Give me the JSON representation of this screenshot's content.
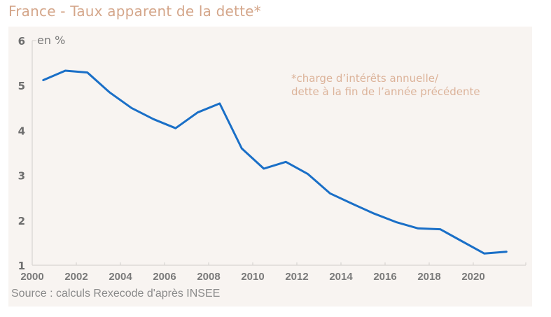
{
  "header": {
    "title": "France - Taux apparent de la dette*"
  },
  "footer": {
    "source": "Source : calculs Rexecode d'après INSEE"
  },
  "colors": {
    "line": "#1a6fc7",
    "title": "#d4a68a",
    "note": "#dcb39a",
    "axis_text": "#7a7a7a",
    "panel_bg": "#f8f4f1"
  },
  "chart_data": {
    "type": "line",
    "title": "France - Taux apparent de la dette*",
    "xlabel": "",
    "ylabel": "en %",
    "unit_label": "en %",
    "annotation_lines": [
      "*charge d’intérêts annuelle/",
      "dette à la fin de l’année précédente"
    ],
    "xlim": [
      2000,
      2022
    ],
    "ylim": [
      1,
      6
    ],
    "x_ticks": [
      "2000",
      "2002",
      "2004",
      "2006",
      "2008",
      "2010",
      "2012",
      "2014",
      "2016",
      "2018",
      "2020"
    ],
    "y_ticks": [
      "1",
      "2",
      "3",
      "4",
      "5",
      "6"
    ],
    "grid": false,
    "legend": "none",
    "series": [
      {
        "name": "Taux apparent de la dette",
        "x": [
          2000.5,
          2001.5,
          2002.5,
          2003.5,
          2004.5,
          2005.5,
          2006.5,
          2007.5,
          2008.5,
          2009.5,
          2010.5,
          2011.5,
          2012.5,
          2013.5,
          2014.5,
          2015.5,
          2016.5,
          2017.5,
          2018.5,
          2019.5,
          2020.5,
          2021.5
        ],
        "values": [
          5.12,
          5.33,
          5.29,
          4.85,
          4.5,
          4.25,
          4.05,
          4.4,
          4.6,
          3.6,
          3.15,
          3.3,
          3.03,
          2.6,
          2.37,
          2.15,
          1.96,
          1.82,
          1.8,
          1.53,
          1.26,
          1.3
        ]
      }
    ]
  }
}
